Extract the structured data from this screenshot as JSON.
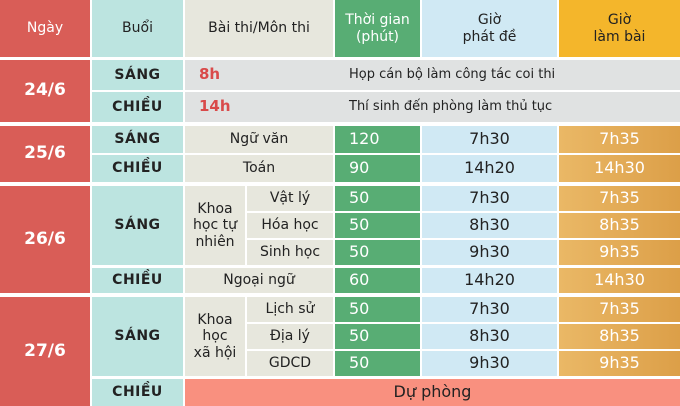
{
  "header": {
    "day": "Ngày",
    "session": "Buổi",
    "subject": "Bài thi/Môn thi",
    "duration": "Thời gian\n(phút)",
    "duration_l1": "Thời gian",
    "duration_l2": "(phút)",
    "hand_out_l1": "Giờ",
    "hand_out_l2": "phát đề",
    "start_l1": "Giờ",
    "start_l2": "làm bài"
  },
  "days": {
    "d24": {
      "date": "24/6",
      "morning": "SÁNG",
      "morning_time": "8h",
      "morning_note": "Họp cán bộ làm công tác coi thi",
      "afternoon": "CHIỀU",
      "afternoon_time": "14h",
      "afternoon_note": "Thí sinh đến phòng làm thủ tục"
    },
    "d25": {
      "date": "25/6",
      "morning": "SÁNG",
      "afternoon": "CHIỀU",
      "rows": [
        {
          "subject": "Ngữ văn",
          "duration": "120",
          "hand_out": "7h30",
          "start": "7h35"
        },
        {
          "subject": "Toán",
          "duration": "90",
          "hand_out": "14h20",
          "start": "14h30"
        }
      ]
    },
    "d26": {
      "date": "26/6",
      "morning": "SÁNG",
      "afternoon": "CHIỀU",
      "group": "Khoa học tự nhiên",
      "rows": [
        {
          "subject": "Vật lý",
          "duration": "50",
          "hand_out": "7h30",
          "start": "7h35"
        },
        {
          "subject": "Hóa học",
          "duration": "50",
          "hand_out": "8h30",
          "start": "8h35"
        },
        {
          "subject": "Sinh học",
          "duration": "50",
          "hand_out": "9h30",
          "start": "9h35"
        },
        {
          "subject": "Ngoại ngữ",
          "duration": "60",
          "hand_out": "14h20",
          "start": "14h30"
        }
      ]
    },
    "d27": {
      "date": "27/6",
      "morning": "SÁNG",
      "afternoon": "CHIỀU",
      "group": "Khoa học xã hội",
      "reserve": "Dự phòng",
      "rows": [
        {
          "subject": "Lịch sử",
          "duration": "50",
          "hand_out": "7h30",
          "start": "7h35"
        },
        {
          "subject": "Địa lý",
          "duration": "50",
          "hand_out": "8h30",
          "start": "8h35"
        },
        {
          "subject": "GDCD",
          "duration": "50",
          "hand_out": "9h30",
          "start": "9h35"
        }
      ]
    }
  },
  "colors": {
    "day": "#d95d57",
    "session": "#bce4e0",
    "subject": "#e7e7dd",
    "duration": "#58ad74",
    "hand_out": "#d0e9f4",
    "start": "#f4b62b",
    "reserve": "#f9907f"
  }
}
